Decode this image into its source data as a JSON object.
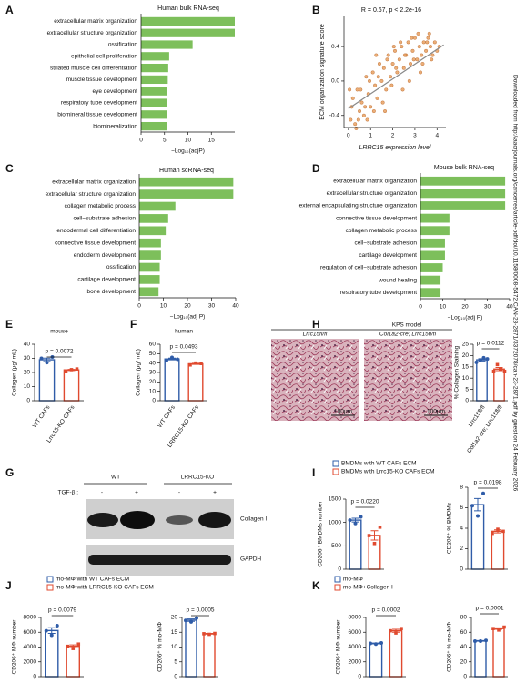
{
  "chart_data": [
    {
      "type": "hbar",
      "panel": "A",
      "title": "Human bulk RNA-seq",
      "xlabel": "−Log₁₀(adjP)",
      "color": "#7dbf5b",
      "categories": [
        "extracellular matrix organization",
        "extracellular structure organization",
        "ossification",
        "epithelial cell proliferation",
        "striated muscle cell differentiation",
        "muscle tissue development",
        "eye development",
        "respiratory tube development",
        "biomineral tissue development",
        "biomineralization"
      ],
      "values": [
        20,
        20,
        11,
        6,
        5.8,
        5.7,
        5.6,
        5.5,
        5.5,
        5.5
      ],
      "xlim": [
        0,
        20
      ],
      "xticks": [
        0,
        5,
        10,
        15
      ]
    },
    {
      "type": "scatter",
      "panel": "B",
      "annotation": "R = 0.67, p < 2.2e-16",
      "xlabel": "LRRC15 expression level",
      "ylabel": "ECM organization signature score",
      "color": "#e8a060",
      "x": [
        0.1,
        0.2,
        0.3,
        0.4,
        0.5,
        0.6,
        0.7,
        0.8,
        0.9,
        1.0,
        1.1,
        1.2,
        1.3,
        1.4,
        1.5,
        1.6,
        1.7,
        1.8,
        1.9,
        2.0,
        2.1,
        2.2,
        2.3,
        2.4,
        2.5,
        2.6,
        2.7,
        2.8,
        2.9,
        3.0,
        3.1,
        3.2,
        3.3,
        3.4,
        3.5,
        3.6,
        3.7,
        3.8,
        3.9,
        4.0,
        0.15,
        0.35,
        0.55,
        0.75,
        0.95,
        1.15,
        1.35,
        1.55,
        1.75,
        1.95,
        2.15,
        2.35,
        2.55,
        2.75,
        2.95,
        3.15,
        3.35,
        3.55,
        3.75,
        0.05,
        0.45,
        0.85,
        1.25,
        1.65,
        2.05,
        2.45,
        2.85,
        3.25,
        3.65,
        4.1
      ],
      "y": [
        -0.45,
        -0.2,
        -0.5,
        -0.1,
        -0.35,
        -0.25,
        -0.4,
        0.05,
        -0.15,
        -0.3,
        0.1,
        -0.05,
        -0.2,
        0.2,
        0.0,
        0.15,
        -0.1,
        0.3,
        0.05,
        0.2,
        0.35,
        0.1,
        0.25,
        0.4,
        0.15,
        0.3,
        0.45,
        0.2,
        0.35,
        0.5,
        0.25,
        0.4,
        0.3,
        0.45,
        0.35,
        0.5,
        0.4,
        0.3,
        0.45,
        0.35,
        -0.3,
        -0.55,
        -0.1,
        -0.3,
        0.0,
        -0.35,
        0.05,
        -0.25,
        0.25,
        -0.05,
        0.15,
        0.45,
        0.3,
        0.0,
        0.25,
        0.55,
        0.2,
        0.45,
        0.25,
        -0.1,
        -0.45,
        -0.45,
        0.3,
        -0.35,
        0.4,
        -0.1,
        0.5,
        0.1,
        0.55,
        0.4
      ],
      "fit": {
        "x": [
          0,
          4.3
        ],
        "y": [
          -0.32,
          0.42
        ]
      },
      "xlim": [
        -0.2,
        4.4
      ],
      "xticks": [
        0,
        1,
        2,
        3,
        4
      ],
      "ylim": [
        -0.54,
        0.75
      ],
      "yticks": [
        -0.4,
        {
          "value": 0,
          "label": "0.0"
        },
        0.4
      ]
    },
    {
      "type": "hbar",
      "panel": "C",
      "title": "Human scRNA-seq",
      "xlabel": "−Log₁₀(adj P)",
      "color": "#7dbf5b",
      "categories": [
        "extracellular matrix organization",
        "extracellular structure organization",
        "collagen metabolic process",
        "cell−substrate adhesion",
        "endodermal cell differentiation",
        "connective tissue development",
        "endoderm development",
        "ossification",
        "cartilage development",
        "bone development"
      ],
      "values": [
        39,
        39,
        15,
        12,
        11,
        9,
        9,
        8.5,
        8.5,
        8
      ],
      "xlim": [
        0,
        40
      ],
      "xticks": [
        0,
        10,
        20,
        30,
        40
      ]
    },
    {
      "type": "hbar",
      "panel": "D",
      "title": "Mouse bulk RNA-seq",
      "xlabel": "−Log₁₀(adj P)",
      "color": "#7dbf5b",
      "categories": [
        "extracellular matrix organization",
        "extracellular structure organization",
        "external encapsulating structure organization",
        "connective tissue development",
        "collagen metabolic process",
        "cell−substrate adhesion",
        "cartilage development",
        "regulation of cell−substrate adhesion",
        "wound healing",
        "respiratory tube development"
      ],
      "values": [
        38,
        38,
        38,
        13,
        13,
        11,
        11,
        10,
        9,
        9
      ],
      "xlim": [
        0,
        40
      ],
      "xticks": [
        0,
        10,
        20,
        30,
        40
      ]
    },
    {
      "type": "dotbar",
      "panel": "E",
      "title": "mouse",
      "ylabel": "Collagen (μg/ mL)",
      "annotation": "p = 0.0072",
      "colors": [
        "#2f5ca8",
        "#e04a2f"
      ],
      "categories": [
        "WT CAFs",
        "Lrrc15-KO CAFs"
      ],
      "values": [
        29,
        21.8
      ],
      "errors": [
        1.2,
        0.4
      ],
      "points": [
        [
          30,
          27,
          31
        ],
        [
          21,
          22,
          22.5
        ]
      ],
      "ylim": [
        0,
        40
      ],
      "yticks": [
        0,
        10,
        20,
        30,
        40
      ]
    },
    {
      "type": "dotbar",
      "panel": "F",
      "title": "human",
      "ylabel": "Collagen (μg/ mL)",
      "annotation": "p = 0.0493",
      "colors": [
        "#2f5ca8",
        "#e04a2f"
      ],
      "categories": [
        "WT CAFs",
        "LRRC15-KO CAFs"
      ],
      "values": [
        44.3,
        39.2
      ],
      "errors": [
        0.9,
        0.6
      ],
      "points": [
        [
          43,
          46,
          44
        ],
        [
          38,
          40,
          39.5
        ]
      ],
      "ylim": [
        0,
        60
      ],
      "yticks": [
        0,
        10,
        20,
        30,
        40,
        50,
        60
      ]
    },
    {
      "type": "dotbar",
      "panel": "H",
      "title": "KPS model",
      "image_labels": [
        "Lrrc15fl/fl",
        "Col1a2-cre; Lrrc15fl/fl"
      ],
      "scale_bars": [
        "100μm",
        "100μm"
      ],
      "ylabel": "% Collagen Staining",
      "annotation": "p = 0.0112",
      "colors": [
        "#2f5ca8",
        "#e04a2f"
      ],
      "categories": [
        "Lrrc15fl/fl",
        "Col1a2-cre; Lrrc15fl/fl"
      ],
      "values": [
        18.1,
        14
      ],
      "errors": [
        0.5,
        0.7
      ],
      "points": [
        [
          17,
          18,
          19,
          18.5
        ],
        [
          13,
          16,
          14,
          13
        ]
      ],
      "ylim": [
        0,
        25
      ],
      "yticks": [
        0,
        5,
        10,
        15,
        20,
        25
      ]
    },
    {
      "type": "dotbar",
      "panel": "I",
      "legend": [
        "BMDMs with WT CAFs ECM",
        "BMDMs with Lrrc15-KO CAFs ECM"
      ],
      "ylabel": "CD206⁺ BMDMs number",
      "annotation": "p = 0.0220",
      "colors": [
        "#2f5ca8",
        "#e04a2f"
      ],
      "values": [
        1050,
        723
      ],
      "errors": [
        40,
        100
      ],
      "points": [
        [
          1050,
          980,
          1120
        ],
        [
          720,
          550,
          900
        ]
      ],
      "ylim": [
        0,
        1500
      ],
      "yticks": [
        0,
        500,
        1000,
        1500
      ]
    },
    {
      "type": "dotbar",
      "ylabel": "CD206⁺ % BMDMs",
      "annotation": "p = 0.0198",
      "colors": [
        "#2f5ca8",
        "#e04a2f"
      ],
      "values": [
        6.3,
        3.7
      ],
      "errors": [
        0.6,
        0.15
      ],
      "points": [
        [
          6.2,
          5.2,
          7.4
        ],
        [
          3.5,
          3.9,
          3.7
        ]
      ],
      "ylim": [
        0,
        8
      ],
      "yticks": [
        0,
        2,
        4,
        6,
        8
      ]
    },
    {
      "type": "dotbar",
      "panel": "J",
      "legend": [
        "mo-MΦ with WT CAFs ECM",
        "mo-MΦ with LRRC15-KO CAFs ECM"
      ],
      "ylabel": "CD206⁺ MΦ number",
      "annotation": "p = 0.0079",
      "colors": [
        "#2f5ca8",
        "#e04a2f"
      ],
      "values": [
        6233,
        4100
      ],
      "errors": [
        380,
        200
      ],
      "points": [
        [
          6200,
          5600,
          6900
        ],
        [
          4100,
          3800,
          4400
        ]
      ],
      "ylim": [
        0,
        8000
      ],
      "yticks": [
        0,
        2000,
        4000,
        6000,
        8000
      ]
    },
    {
      "type": "dotbar",
      "ylabel": "CD206⁺ % mo-MΦ",
      "annotation": "p = 0.0005",
      "colors": [
        "#2f5ca8",
        "#e04a2f"
      ],
      "values": [
        19.1,
        14.5
      ],
      "errors": [
        0.4,
        0.1
      ],
      "points": [
        [
          19,
          18.5,
          19.8
        ],
        [
          14.5,
          14.3,
          14.6
        ]
      ],
      "ylim": [
        0,
        20
      ],
      "yticks": [
        0,
        5,
        10,
        15,
        20
      ]
    },
    {
      "type": "dotbar",
      "panel": "K",
      "legend": [
        "mo-MΦ",
        "mo-MΦ+Collagen I"
      ],
      "ylabel": "CD206⁺ MΦ number",
      "annotation": "p = 0.0002",
      "colors": [
        "#2f5ca8",
        "#e04a2f"
      ],
      "values": [
        4483,
        6200
      ],
      "errors": [
        50,
        200
      ],
      "points": [
        [
          4500,
          4400,
          4550
        ],
        [
          6200,
          5900,
          6500
        ]
      ],
      "ylim": [
        0,
        8000
      ],
      "yticks": [
        0,
        2000,
        4000,
        6000,
        8000
      ]
    },
    {
      "type": "dotbar",
      "ylabel": "CD206⁺ % mo-MΦ",
      "annotation": "p = 0.0001",
      "colors": [
        "#2f5ca8",
        "#e04a2f"
      ],
      "values": [
        48.3,
        65
      ],
      "errors": [
        0.4,
        1
      ],
      "points": [
        [
          48,
          48,
          49
        ],
        [
          65,
          63,
          67
        ]
      ],
      "ylim": [
        0,
        80
      ],
      "yticks": [
        0,
        20,
        40,
        60,
        80
      ]
    }
  ],
  "blot": {
    "panel": "G",
    "groups": [
      "WT",
      "LRRC15-KO"
    ],
    "treatment": "TGF-β :",
    "signs": [
      "-",
      "+",
      "-",
      "+"
    ],
    "bands": [
      "Collagen I",
      "GAPDH"
    ]
  },
  "watermark": "Downloaded from http://aacrjournals.org/cancerres/article-pdf/doi/10.1158/0008-5472.CAN-23-2871/3372078/can-23-2871.pdf by guest on 24 February 2026"
}
